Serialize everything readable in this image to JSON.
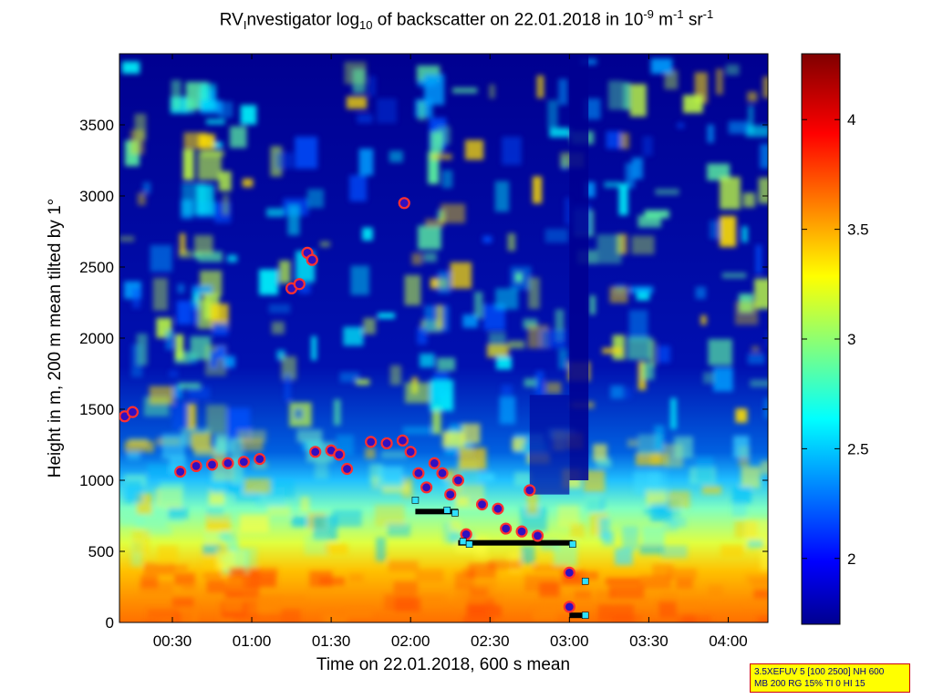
{
  "title": {
    "prefix": "RV",
    "sub_i": "I",
    "mid": "nvestigator log",
    "sub_10": "10",
    "suffix1": " of backscatter on 22.01.2018 in 10",
    "sup_m9": "-9",
    "suffix2": " m",
    "sup_m1a": "-1",
    "suffix3": " sr",
    "sup_m1b": "-1"
  },
  "chart_data": {
    "type": "heatmap",
    "xlabel": "Time on 22.01.2018, 600 s mean",
    "ylabel": "Height in m, 200 m mean tilted by 1°",
    "x_unit": "hours since 00:00 on 22.01.2018",
    "xlim": [
      0.167,
      4.25
    ],
    "ylim": [
      0,
      4000
    ],
    "x_ticks": [
      0.5,
      1.0,
      1.5,
      2.0,
      2.5,
      3.0,
      3.5,
      4.0
    ],
    "x_tick_labels": [
      "00:30",
      "01:00",
      "01:30",
      "02:00",
      "02:30",
      "03:00",
      "03:30",
      "04:00"
    ],
    "y_ticks": [
      0,
      500,
      1000,
      1500,
      2000,
      2500,
      3000,
      3500
    ],
    "y_tick_labels": [
      "0",
      "500",
      "1000",
      "1500",
      "2000",
      "2500",
      "3000",
      "3500"
    ],
    "colorbar": {
      "colormap": "jet",
      "clim": [
        1.7,
        4.3
      ],
      "ticks": [
        2,
        2.5,
        3,
        3.5,
        4
      ],
      "tick_labels": [
        "2",
        "2.5",
        "3",
        "3.5",
        "4"
      ]
    },
    "cloud_base_markers": [
      {
        "t": 0.2,
        "h": 1450
      },
      {
        "t": 0.25,
        "h": 1480
      },
      {
        "t": 0.55,
        "h": 1060
      },
      {
        "t": 0.65,
        "h": 1100
      },
      {
        "t": 0.75,
        "h": 1110
      },
      {
        "t": 0.85,
        "h": 1120
      },
      {
        "t": 0.95,
        "h": 1130
      },
      {
        "t": 1.05,
        "h": 1150
      },
      {
        "t": 1.25,
        "h": 2350
      },
      {
        "t": 1.3,
        "h": 2380
      },
      {
        "t": 1.35,
        "h": 2600
      },
      {
        "t": 1.38,
        "h": 2550
      },
      {
        "t": 1.4,
        "h": 1200
      },
      {
        "t": 1.5,
        "h": 1210
      },
      {
        "t": 1.55,
        "h": 1180
      },
      {
        "t": 1.6,
        "h": 1080
      },
      {
        "t": 1.75,
        "h": 1270
      },
      {
        "t": 1.85,
        "h": 1260
      },
      {
        "t": 1.95,
        "h": 1280
      },
      {
        "t": 2.0,
        "h": 1200
      },
      {
        "t": 2.05,
        "h": 1050
      },
      {
        "t": 2.1,
        "h": 950
      },
      {
        "t": 1.96,
        "h": 2950
      },
      {
        "t": 2.15,
        "h": 1120
      },
      {
        "t": 2.2,
        "h": 1050
      },
      {
        "t": 2.25,
        "h": 900
      },
      {
        "t": 2.3,
        "h": 1000
      },
      {
        "t": 2.35,
        "h": 620
      },
      {
        "t": 2.45,
        "h": 830
      },
      {
        "t": 2.55,
        "h": 800
      },
      {
        "t": 2.6,
        "h": 660
      },
      {
        "t": 2.7,
        "h": 640
      },
      {
        "t": 2.75,
        "h": 930
      },
      {
        "t": 2.8,
        "h": 610
      },
      {
        "t": 3.0,
        "h": 350
      },
      {
        "t": 3.0,
        "h": 110
      }
    ],
    "black_layers": [
      {
        "t0": 2.03,
        "t1": 2.3,
        "h": 780
      },
      {
        "t0": 2.3,
        "t1": 3.02,
        "h": 560
      },
      {
        "t0": 3.0,
        "t1": 3.12,
        "h": 50
      }
    ],
    "cyan_markers": [
      {
        "t": 2.03,
        "h": 860
      },
      {
        "t": 2.23,
        "h": 790
      },
      {
        "t": 2.28,
        "h": 770
      },
      {
        "t": 2.33,
        "h": 570
      },
      {
        "t": 2.37,
        "h": 550
      },
      {
        "t": 3.02,
        "h": 550
      },
      {
        "t": 3.1,
        "h": 290
      },
      {
        "t": 3.1,
        "h": 50
      }
    ]
  },
  "info_box": {
    "line1": "3.5XEFUV 5 [100 2500] NH 600",
    "line2": "MB 200 RG 15% TI 0 HI 15"
  }
}
